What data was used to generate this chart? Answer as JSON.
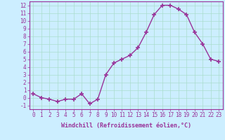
{
  "x": [
    0,
    1,
    2,
    3,
    4,
    5,
    6,
    7,
    8,
    9,
    10,
    11,
    12,
    13,
    14,
    15,
    16,
    17,
    18,
    19,
    20,
    21,
    22,
    23
  ],
  "y": [
    0.5,
    0.0,
    -0.2,
    -0.5,
    -0.2,
    -0.2,
    0.5,
    -0.8,
    -0.2,
    3.0,
    4.5,
    5.0,
    5.5,
    6.5,
    8.5,
    10.8,
    12.0,
    12.0,
    11.5,
    10.8,
    8.5,
    7.0,
    5.0,
    4.7
  ],
  "line_color": "#993399",
  "marker": "+",
  "markersize": 4,
  "background_color": "#cceeff",
  "grid_color": "#aaddcc",
  "xlabel": "Windchill (Refroidissement éolien,°C)",
  "ylabel_ticks": [
    -1,
    0,
    1,
    2,
    3,
    4,
    5,
    6,
    7,
    8,
    9,
    10,
    11,
    12
  ],
  "xlim": [
    -0.5,
    23.5
  ],
  "ylim": [
    -1.5,
    12.5
  ],
  "tick_color": "#993399",
  "label_color": "#993399",
  "spine_color": "#993399",
  "xlabel_fontsize": 6.0,
  "tick_fontsize": 5.5
}
